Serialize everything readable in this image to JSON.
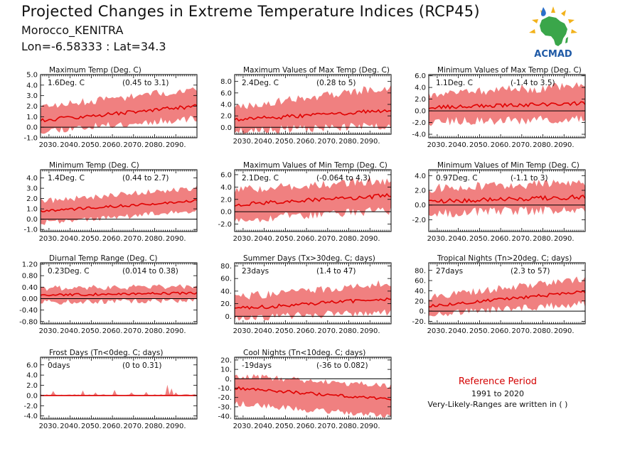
{
  "header": {
    "title": "Projected Changes in Extreme Temperature Indices (RCP45)",
    "location": "Morocco_KENITRA",
    "coords": "Lon=-6.58333 : Lat=34.3"
  },
  "logo": {
    "name": "acmad-africa-logo",
    "text": "ACMAD",
    "colors": {
      "africa": "#3aa64a",
      "rays": "#f2b21b",
      "text": "#1f5aa6"
    }
  },
  "reference": {
    "title": "Reference Period",
    "years": "1991 to 2020",
    "note": "Very-Likely-Ranges are written in ( )"
  },
  "colors": {
    "band": "#f08080",
    "line": "#e00000",
    "zero": "#000000"
  },
  "chart_data": [
    {
      "type": "area",
      "title": "Maximum Temp (Deg. C)",
      "summary": "1.6Deg. C",
      "range_text": "(0.45 to 3.1)",
      "x_ticks": [
        "2030.",
        "2040.",
        "2050.",
        "2060.",
        "2070.",
        "2080.",
        "2090."
      ],
      "x_range": [
        2026,
        2100
      ],
      "ylim": [
        -1.0,
        5.0
      ],
      "y_ticks": [
        5.0,
        4.0,
        3.0,
        2.0,
        1.0,
        0.0,
        -1.0
      ],
      "y_tick_labels": [
        "5.0",
        "4.0",
        "3.0",
        "2.0",
        "1.0",
        "0.0",
        "-1.0"
      ],
      "median": [
        0.65,
        2.0
      ],
      "low": [
        -0.3,
        0.9
      ],
      "high": [
        1.9,
        3.6
      ],
      "band_noise": 0.45,
      "line_noise": 0.18,
      "seed": 11
    },
    {
      "type": "area",
      "title": "Maximum Values of Max Temp (Deg. C)",
      "summary": "2.4Deg. C",
      "range_text": "(0.28 to 5)",
      "x_ticks": [
        "2030.",
        "2040.",
        "2050.",
        "2060.",
        "2070.",
        "2080.",
        "2090."
      ],
      "x_range": [
        2026,
        2100
      ],
      "ylim": [
        -1.2,
        9.2
      ],
      "y_ticks": [
        8.0,
        6.0,
        4.0,
        2.0,
        0.0
      ],
      "y_tick_labels": [
        "8.0",
        "6.0",
        "4.0",
        "2.0",
        "0.0"
      ],
      "median": [
        1.3,
        3.0
      ],
      "low": [
        -0.6,
        0.4
      ],
      "high": [
        3.5,
        7.0
      ],
      "band_noise": 0.9,
      "line_noise": 0.35,
      "seed": 23
    },
    {
      "type": "area",
      "title": "Minimum Values of Max Temp (Deg. C)",
      "summary": "1.1Deg. C",
      "range_text": "(-1.4 to 3.5)",
      "x_ticks": [
        "2030.",
        "2040.",
        "2050.",
        "2060.",
        "2070.",
        "2080.",
        "2090."
      ],
      "x_range": [
        2026,
        2100
      ],
      "ylim": [
        -4.6,
        6.2
      ],
      "y_ticks": [
        6.0,
        4.0,
        2.0,
        0.0,
        -2.0,
        -4.0
      ],
      "y_tick_labels": [
        "6.0",
        "4.0",
        "2.0",
        "0.0",
        "-2.0",
        "-4.0"
      ],
      "median": [
        0.6,
        1.3
      ],
      "low": [
        -1.8,
        -1.4
      ],
      "high": [
        2.8,
        4.2
      ],
      "band_noise": 1.0,
      "line_noise": 0.3,
      "seed": 37
    },
    {
      "type": "area",
      "title": "Minimum Temp (Deg. C)",
      "summary": "1.4Deg. C",
      "range_text": "(0.44 to 2.7)",
      "x_ticks": [
        "2030.",
        "2040.",
        "2050.",
        "2060.",
        "2070.",
        "2080.",
        "2090."
      ],
      "x_range": [
        2026,
        2100
      ],
      "ylim": [
        -1.2,
        4.8
      ],
      "y_ticks": [
        4.0,
        3.0,
        2.0,
        1.0,
        0.0,
        -1.0
      ],
      "y_tick_labels": [
        "4.0",
        "3.0",
        "2.0",
        "1.0",
        "0.0",
        "-1.0"
      ],
      "median": [
        0.75,
        1.8
      ],
      "low": [
        -0.3,
        0.8
      ],
      "high": [
        1.7,
        3.0
      ],
      "band_noise": 0.35,
      "line_noise": 0.12,
      "seed": 41
    },
    {
      "type": "area",
      "title": "Maximum Values of Min Temp (Deg. C)",
      "summary": "2.1Deg. C",
      "range_text": "(-0.064 to 4.3)",
      "x_ticks": [
        "2030.",
        "2040.",
        "2050.",
        "2060.",
        "2070.",
        "2080.",
        "2090."
      ],
      "x_range": [
        2026,
        2100
      ],
      "ylim": [
        -3.2,
        6.8
      ],
      "y_ticks": [
        6.0,
        4.0,
        2.0,
        0.0,
        -2.0
      ],
      "y_tick_labels": [
        "6.0",
        "4.0",
        "2.0",
        "0.0",
        "-2.0"
      ],
      "median": [
        1.2,
        2.6
      ],
      "low": [
        -1.2,
        0.3
      ],
      "high": [
        3.5,
        5.0
      ],
      "band_noise": 0.9,
      "line_noise": 0.35,
      "seed": 53
    },
    {
      "type": "area",
      "title": "Minimum Values of Min Temp (Deg. C)",
      "summary": "0.97Deg. C",
      "range_text": "(-1.1 to 3)",
      "x_ticks": [
        "2030.",
        "2040.",
        "2050.",
        "2060.",
        "2070.",
        "2080.",
        "2090."
      ],
      "x_range": [
        2026,
        2100
      ],
      "ylim": [
        -3.6,
        4.8
      ],
      "y_ticks": [
        4.0,
        2.0,
        0.0,
        -2.0
      ],
      "y_tick_labels": [
        "4.0",
        "2.0",
        "0.0",
        "-2.0"
      ],
      "median": [
        0.5,
        1.1
      ],
      "low": [
        -1.0,
        -0.6
      ],
      "high": [
        2.2,
        3.0
      ],
      "band_noise": 0.8,
      "line_noise": 0.3,
      "seed": 67
    },
    {
      "type": "area",
      "title": "Diurnal Temp Range (Deg. C)",
      "summary": "0.23Deg. C",
      "range_text": "(0.014 to 0.38)",
      "x_ticks": [
        "2030.",
        "2040.",
        "2050.",
        "2060.",
        "2070.",
        "2080.",
        "2090."
      ],
      "x_range": [
        2026,
        2100
      ],
      "ylim": [
        -0.88,
        1.25
      ],
      "y_ticks": [
        1.2,
        0.8,
        0.4,
        0.0,
        -0.4,
        -0.8
      ],
      "y_tick_labels": [
        "1.20",
        "0.80",
        "0.40",
        "0.00",
        "-0.40",
        "-0.80"
      ],
      "median": [
        0.12,
        0.2
      ],
      "low": [
        -0.12,
        -0.05
      ],
      "high": [
        0.35,
        0.42
      ],
      "band_noise": 0.12,
      "line_noise": 0.04,
      "seed": 71
    },
    {
      "type": "area",
      "title": "Summer Days (Tx>30deg. C; days)",
      "summary": "23days",
      "range_text": "(1.4 to 47)",
      "x_ticks": [
        "2030.",
        "2040.",
        "2050.",
        "2060.",
        "2070.",
        "2080.",
        "2090."
      ],
      "x_range": [
        2026,
        2100
      ],
      "ylim": [
        -12,
        85
      ],
      "y_ticks": [
        80,
        60,
        40,
        20,
        0
      ],
      "y_tick_labels": [
        "80.",
        "60.",
        "40.",
        "20.",
        "0."
      ],
      "median": [
        12,
        28
      ],
      "low": [
        -2,
        8
      ],
      "high": [
        30,
        52
      ],
      "band_noise": 8,
      "line_noise": 3,
      "seed": 83
    },
    {
      "type": "area",
      "title": "Tropical Nights (Tn>20deg. C; days)",
      "summary": "27days",
      "range_text": "(2.3 to 57)",
      "x_ticks": [
        "2030.",
        "2040.",
        "2050.",
        "2060.",
        "2070.",
        "2080.",
        "2090."
      ],
      "x_range": [
        2026,
        2100
      ],
      "ylim": [
        -25,
        95
      ],
      "y_ticks": [
        80,
        60,
        40,
        20,
        0,
        -20
      ],
      "y_tick_labels": [
        "80.",
        "60.",
        "40.",
        "20.",
        "0.",
        "-20."
      ],
      "median": [
        10,
        38
      ],
      "low": [
        -5,
        15
      ],
      "high": [
        28,
        62
      ],
      "band_noise": 9,
      "line_noise": 3,
      "seed": 97
    },
    {
      "type": "area",
      "title": "Frost Days (Tn<0deg. C; days)",
      "summary": "0days",
      "range_text": "(0 to 0.31)",
      "x_ticks": [
        "2030.",
        "2040.",
        "2050.",
        "2060.",
        "2070.",
        "2080.",
        "2090."
      ],
      "x_range": [
        2026,
        2100
      ],
      "ylim": [
        -4.6,
        7.5
      ],
      "y_ticks": [
        6.0,
        4.0,
        2.0,
        0.0,
        -2.0,
        -4.0
      ],
      "y_tick_labels": [
        "6.0",
        "4.0",
        "2.0",
        "0.0",
        "-2.0",
        "-4.0"
      ],
      "median": [
        0.0,
        0.0
      ],
      "low": [
        0.0,
        0.0
      ],
      "high": [
        0.25,
        0.25
      ],
      "band_noise": 0.3,
      "line_noise": 0.0,
      "seed": 5,
      "nonneg": true,
      "spikes": [
        [
          2032,
          0.9
        ],
        [
          2046,
          1.0
        ],
        [
          2052,
          0.6
        ],
        [
          2061,
          1.1
        ],
        [
          2069,
          0.6
        ],
        [
          2076,
          0.7
        ],
        [
          2086,
          2.1
        ],
        [
          2088,
          1.4
        ],
        [
          2090,
          0.6
        ]
      ]
    },
    {
      "type": "area",
      "title": "Cool Nights (Tn<10deg. C; days)",
      "summary": "-19days",
      "range_text": "(-36 to 0.082)",
      "x_ticks": [
        "2030.",
        "2040.",
        "2050.",
        "2060.",
        "2070.",
        "2080.",
        "2090."
      ],
      "x_range": [
        2026,
        2100
      ],
      "ylim": [
        -43,
        23
      ],
      "y_ticks": [
        20,
        10,
        0,
        -10,
        -20,
        -30,
        -40
      ],
      "y_tick_labels": [
        "20.",
        "10.",
        "0.",
        "-10.",
        "-20.",
        "-30.",
        "-40."
      ],
      "median": [
        -10,
        -22
      ],
      "low": [
        -26,
        -40
      ],
      "high": [
        3,
        -8
      ],
      "band_noise": 4,
      "line_noise": 1.5,
      "seed": 113
    }
  ]
}
